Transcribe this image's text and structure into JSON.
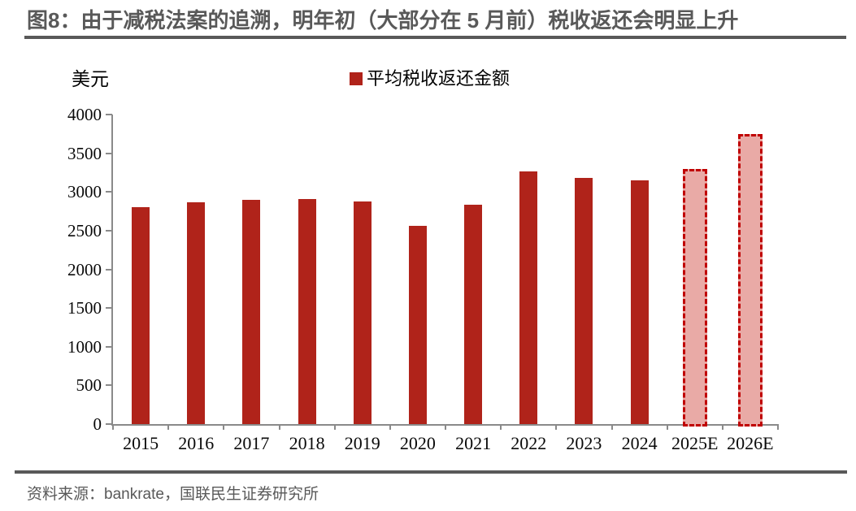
{
  "figure": {
    "title": "图8：由于减税法案的追溯，明年初（大部分在 5 月前）税收返还会明显上升",
    "source": "资料来源：bankrate，国联民生证券研究所"
  },
  "chart_data": {
    "type": "bar",
    "title": "图8：由于减税法案的追溯，明年初（大部分在 5 月前）税收返还会明显上升",
    "unit_label": "美元",
    "legend": [
      "平均税收返还金额"
    ],
    "legend_position": "top-center",
    "categories": [
      "2015",
      "2016",
      "2017",
      "2018",
      "2019",
      "2020",
      "2021",
      "2022",
      "2023",
      "2024",
      "2025E",
      "2026E"
    ],
    "values": [
      2800,
      2870,
      2900,
      2910,
      2880,
      2560,
      2830,
      3270,
      3180,
      3150,
      3300,
      3750
    ],
    "forecast_categories": [
      "2025E",
      "2026E"
    ],
    "xlabel": "",
    "ylabel": "美元",
    "ylim": [
      0,
      4000
    ],
    "ytick_step": 500,
    "grid": false,
    "colors": {
      "bar": "#b0231a",
      "forecast_fill": "#e9aaa6",
      "forecast_border": "#c00000",
      "axis": "#8a8a8a",
      "title_text": "#595959",
      "rule": "#595959"
    }
  }
}
